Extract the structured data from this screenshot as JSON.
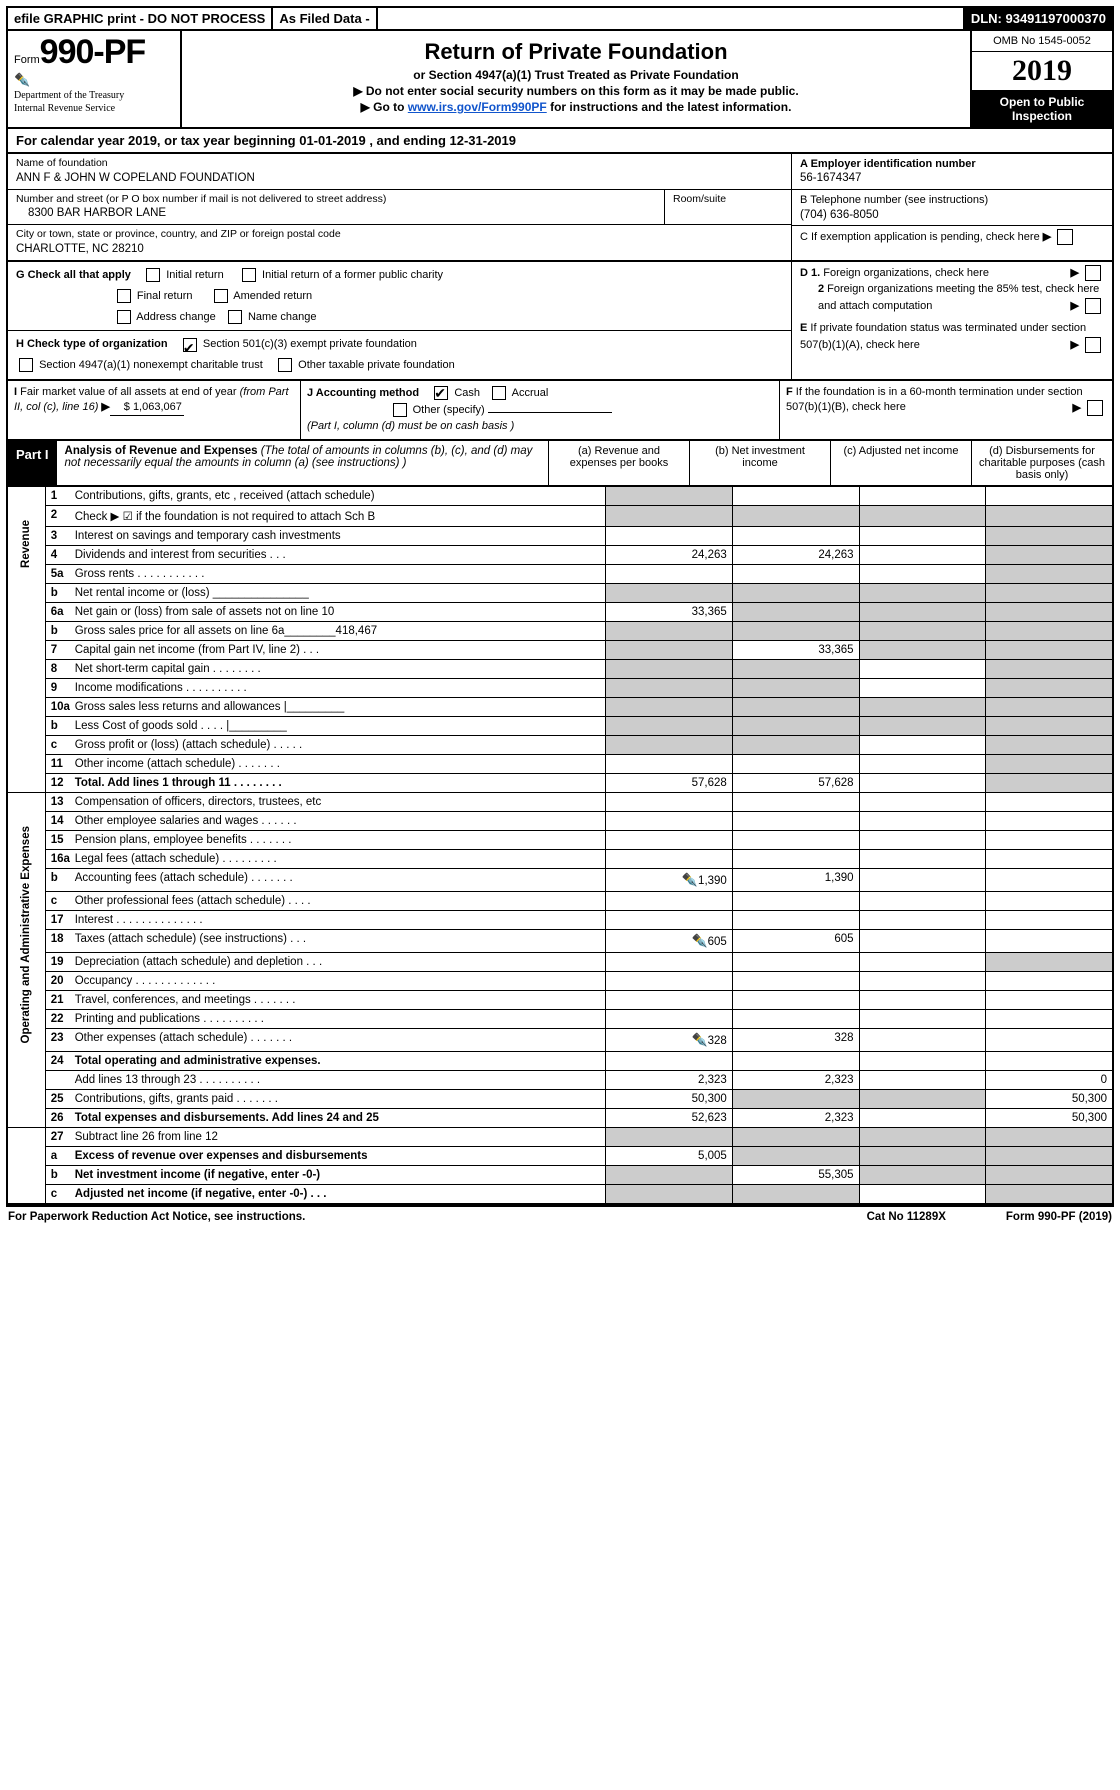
{
  "top": {
    "efile": "efile GRAPHIC print - DO NOT PROCESS",
    "asfiled": "As Filed Data -",
    "dln": "DLN: 93491197000370"
  },
  "header": {
    "form_word": "Form",
    "form_num": "990-PF",
    "dept1": "Department of the Treasury",
    "dept2": "Internal Revenue Service",
    "title": "Return of Private Foundation",
    "sub1": "or Section 4947(a)(1) Trust Treated as Private Foundation",
    "sub2": "▶ Do not enter social security numbers on this form as it may be made public.",
    "sub3": "▶ Go to www.irs.gov/Form990PF for instructions and the latest information.",
    "omb": "OMB No 1545-0052",
    "year": "2019",
    "open": "Open to Public Inspection"
  },
  "cal": "For calendar year 2019, or tax year beginning 01-01-2019           , and ending 12-31-2019",
  "id": {
    "name_lbl": "Name of foundation",
    "name": "ANN F & JOHN W COPELAND FOUNDATION",
    "addr_lbl": "Number and street (or P O  box number if mail is not delivered to street address)",
    "addr": "8300 BAR HARBOR LANE",
    "room_lbl": "Room/suite",
    "city_lbl": "City or town, state or province, country, and ZIP or foreign postal code",
    "city": "CHARLOTTE, NC  28210",
    "a_lbl": "A Employer identification number",
    "a_val": "56-1674347",
    "b_lbl": "B Telephone number (see instructions)",
    "b_val": "(704) 636-8050",
    "c_lbl": "C If exemption application is pending, check here"
  },
  "g": {
    "lbl": "G Check all that apply",
    "o1": "Initial return",
    "o2": "Initial return of a former public charity",
    "o3": "Final return",
    "o4": "Amended return",
    "o5": "Address change",
    "o6": "Name change"
  },
  "h": {
    "lbl": "H Check type of organization",
    "o1": "Section 501(c)(3) exempt private foundation",
    "o2": "Section 4947(a)(1) nonexempt charitable trust",
    "o3": "Other taxable private foundation"
  },
  "i": {
    "lbl": "I Fair market value of all assets at end of year (from Part II, col  (c), line 16)",
    "val": "$  1,063,067"
  },
  "j": {
    "lbl": "J Accounting method",
    "o1": "Cash",
    "o2": "Accrual",
    "o3": "Other (specify)",
    "note": "(Part I, column (d) must be on cash basis )"
  },
  "right_notes": {
    "d1": "D 1. Foreign organizations, check here",
    "d2": "2  Foreign organizations meeting the 85% test, check here and attach computation",
    "e": "E  If private foundation status was terminated under section 507(b)(1)(A), check here",
    "f": "F  If the foundation is in a 60-month termination under section 507(b)(1)(B), check here"
  },
  "part1": {
    "tag": "Part I",
    "title": "Analysis of Revenue and Expenses",
    "note": "(The total of amounts in columns (b), (c), and (d) may not necessarily equal the amounts in column (a) (see instructions) )",
    "col_a": "(a)   Revenue and expenses per books",
    "col_b": "(b)  Net investment income",
    "col_c": "(c)  Adjusted net income",
    "col_d": "(d)  Disbursements for charitable purposes (cash basis only)"
  },
  "side": {
    "rev": "Revenue",
    "exp": "Operating and Administrative Expenses"
  },
  "rows": [
    {
      "n": "1",
      "t": "Contributions, gifts, grants, etc , received (attach schedule)",
      "a": "",
      "b": "",
      "c": "",
      "d": "",
      "sa": true
    },
    {
      "n": "2",
      "t": "Check ▶ ☑ if the foundation is not required to attach Sch  B",
      "a": "",
      "b": "",
      "c": "",
      "d": "",
      "sa": true,
      "dots": true,
      "sb": true,
      "sc": true,
      "sd": true
    },
    {
      "n": "3",
      "t": "Interest on savings and temporary cash investments",
      "a": "",
      "b": "",
      "c": "",
      "d": "",
      "sd": true
    },
    {
      "n": "4",
      "t": "Dividends and interest from securities   .   .   .",
      "a": "24,263",
      "b": "24,263",
      "c": "",
      "d": "",
      "sd": true
    },
    {
      "n": "5a",
      "t": "Gross rents   .   .   .   .   .   .   .   .   .   .   .",
      "a": "",
      "b": "",
      "c": "",
      "d": "",
      "sd": true
    },
    {
      "n": "b",
      "t": "Net rental income or (loss)  _______________",
      "a": "",
      "b": "",
      "c": "",
      "d": "",
      "sa": true,
      "sb": true,
      "sc": true,
      "sd": true
    },
    {
      "n": "6a",
      "t": "Net gain or (loss) from sale of assets not on line 10",
      "a": "33,365",
      "b": "",
      "c": "",
      "d": "",
      "sb": true,
      "sc": true,
      "sd": true
    },
    {
      "n": "b",
      "t": "Gross sales price for all assets on line 6a________418,467",
      "a": "",
      "b": "",
      "c": "",
      "d": "",
      "sa": true,
      "sb": true,
      "sc": true,
      "sd": true
    },
    {
      "n": "7",
      "t": "Capital gain net income (from Part IV, line 2)   .   .   .",
      "a": "",
      "b": "33,365",
      "c": "",
      "d": "",
      "sa": true,
      "sc": true,
      "sd": true
    },
    {
      "n": "8",
      "t": "Net short-term capital gain  .   .   .   .   .   .   .   .",
      "a": "",
      "b": "",
      "c": "",
      "d": "",
      "sa": true,
      "sb": true,
      "sd": true
    },
    {
      "n": "9",
      "t": "Income modifications .   .   .   .   .   .   .   .   .   .",
      "a": "",
      "b": "",
      "c": "",
      "d": "",
      "sa": true,
      "sb": true,
      "sd": true
    },
    {
      "n": "10a",
      "t": "Gross sales less returns and allowances |_________",
      "a": "",
      "b": "",
      "c": "",
      "d": "",
      "sa": true,
      "sb": true,
      "sc": true,
      "sd": true
    },
    {
      "n": "b",
      "t": "Less  Cost of goods sold    .   .   .   . |_________",
      "a": "",
      "b": "",
      "c": "",
      "d": "",
      "sa": true,
      "sb": true,
      "sc": true,
      "sd": true
    },
    {
      "n": "c",
      "t": "Gross profit or (loss) (attach schedule)   .   .   .   .   .",
      "a": "",
      "b": "",
      "c": "",
      "d": "",
      "sa": true,
      "sb": true,
      "sd": true
    },
    {
      "n": "11",
      "t": "Other income (attach schedule)    .   .   .   .   .   .   .",
      "a": "",
      "b": "",
      "c": "",
      "d": "",
      "sd": true
    },
    {
      "n": "12",
      "t": "Total. Add lines 1 through 11   .   .   .   .   .   .   .   .",
      "a": "57,628",
      "b": "57,628",
      "c": "",
      "d": "",
      "bold": true,
      "sd": true
    }
  ],
  "rows2": [
    {
      "n": "13",
      "t": "Compensation of officers, directors, trustees, etc",
      "a": "",
      "b": "",
      "c": "",
      "d": ""
    },
    {
      "n": "14",
      "t": "Other employee salaries and wages    .   .   .   .   .   .",
      "a": "",
      "b": "",
      "c": "",
      "d": ""
    },
    {
      "n": "15",
      "t": "Pension plans, employee benefits  .   .   .   .   .   .   .",
      "a": "",
      "b": "",
      "c": "",
      "d": ""
    },
    {
      "n": "16a",
      "t": "Legal fees (attach schedule) .   .   .   .   .   .   .   .   .",
      "a": "",
      "b": "",
      "c": "",
      "d": ""
    },
    {
      "n": "b",
      "t": "Accounting fees (attach schedule) .   .   .   .   .   .   .",
      "a": "1,390",
      "b": "1,390",
      "c": "",
      "d": "",
      "icon": true
    },
    {
      "n": "c",
      "t": "Other professional fees (attach schedule)   .   .   .   .",
      "a": "",
      "b": "",
      "c": "",
      "d": ""
    },
    {
      "n": "17",
      "t": "Interest  .   .   .   .   .   .   .   .   .   .   .   .   .   .",
      "a": "",
      "b": "",
      "c": "",
      "d": ""
    },
    {
      "n": "18",
      "t": "Taxes (attach schedule) (see instructions)    .   .   .",
      "a": "605",
      "b": "605",
      "c": "",
      "d": "",
      "icon": true
    },
    {
      "n": "19",
      "t": "Depreciation (attach schedule) and depletion   .   .   .",
      "a": "",
      "b": "",
      "c": "",
      "d": "",
      "sd": true
    },
    {
      "n": "20",
      "t": "Occupancy   .   .   .   .   .   .   .   .   .   .   .   .   .",
      "a": "",
      "b": "",
      "c": "",
      "d": ""
    },
    {
      "n": "21",
      "t": "Travel, conferences, and meetings .   .   .   .   .   .   .",
      "a": "",
      "b": "",
      "c": "",
      "d": ""
    },
    {
      "n": "22",
      "t": "Printing and publications .   .   .   .   .   .   .   .   .   .",
      "a": "",
      "b": "",
      "c": "",
      "d": ""
    },
    {
      "n": "23",
      "t": "Other expenses (attach schedule) .   .   .   .   .   .   .",
      "a": "328",
      "b": "328",
      "c": "",
      "d": "",
      "icon": true
    },
    {
      "n": "24",
      "t": "Total operating and administrative expenses.",
      "a": "",
      "b": "",
      "c": "",
      "d": "",
      "bold": true,
      "nb": true
    },
    {
      "n": "",
      "t": "Add lines 13 through 23  .   .   .   .   .   .   .   .   .   .",
      "a": "2,323",
      "b": "2,323",
      "c": "",
      "d": "0"
    },
    {
      "n": "25",
      "t": "Contributions, gifts, grants paid   .   .   .   .   .   .   .",
      "a": "50,300",
      "b": "",
      "c": "",
      "d": "50,300",
      "sb": true,
      "sc": true
    },
    {
      "n": "26",
      "t": "Total expenses and disbursements. Add lines 24 and 25",
      "a": "52,623",
      "b": "2,323",
      "c": "",
      "d": "50,300",
      "bold": true
    }
  ],
  "rows3": [
    {
      "n": "27",
      "t": "Subtract line 26 from line 12",
      "a": "",
      "b": "",
      "c": "",
      "d": "",
      "sa": true,
      "sb": true,
      "sc": true,
      "sd": true
    },
    {
      "n": "a",
      "t": "Excess of revenue over expenses and disbursements",
      "a": "5,005",
      "b": "",
      "c": "",
      "d": "",
      "bold": true,
      "sb": true,
      "sc": true,
      "sd": true
    },
    {
      "n": "b",
      "t": "Net investment income (if negative, enter -0-)",
      "a": "",
      "b": "55,305",
      "c": "",
      "d": "",
      "bold": true,
      "sa": true,
      "sc": true,
      "sd": true
    },
    {
      "n": "c",
      "t": "Adjusted net income (if negative, enter -0-)  .   .   .",
      "a": "",
      "b": "",
      "c": "",
      "d": "",
      "bold": true,
      "sa": true,
      "sb": true,
      "sd": true
    }
  ],
  "footer": {
    "left": "For Paperwork Reduction Act Notice, see instructions.",
    "mid": "Cat  No  11289X",
    "right": "Form 990-PF (2019)"
  }
}
